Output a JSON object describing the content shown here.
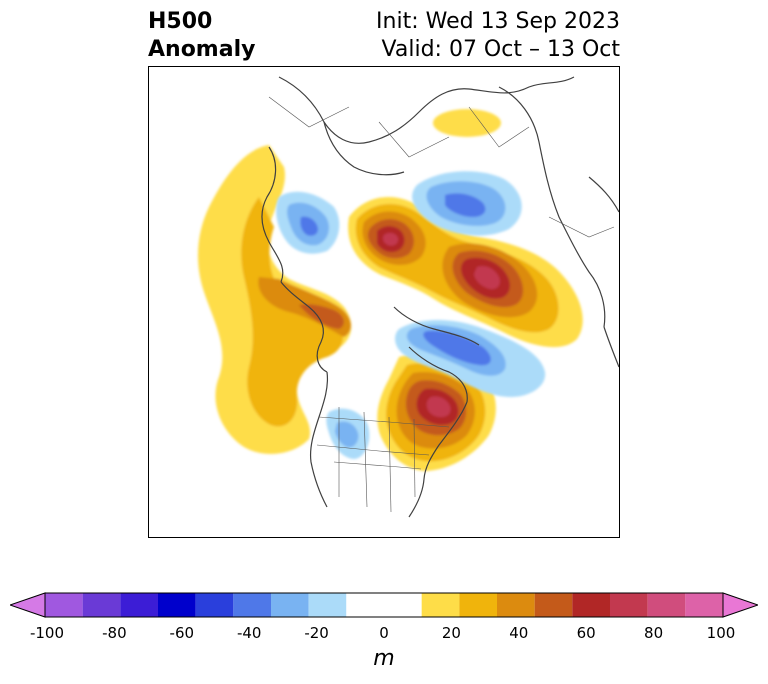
{
  "header": {
    "title_line1": "H500",
    "title_line2": "Anomaly",
    "init": "Init: Wed 13 Sep 2023",
    "valid": "Valid: 07 Oct – 13 Oct"
  },
  "map": {
    "projection": "polar stereographic (North America / Arctic)",
    "field": "500 hPa height anomaly",
    "anomaly_centers": [
      {
        "region": "Eastern North America / Great Lakes",
        "sign": "positive",
        "max_m": 70
      },
      {
        "region": "Greenland Sea / Norway",
        "sign": "positive",
        "max_m": 70
      },
      {
        "region": "Arctic north of Scandinavia",
        "sign": "positive",
        "max_m": 70
      },
      {
        "region": "Bering Sea / Alaska",
        "sign": "positive",
        "max_m": 50
      },
      {
        "region": "North Pacific",
        "sign": "positive",
        "max_m": 30
      },
      {
        "region": "Central Siberia",
        "sign": "positive",
        "max_m": 20
      },
      {
        "region": "Hudson Bay / Canadian Arctic",
        "sign": "negative",
        "max_m": -50
      },
      {
        "region": "Western Siberia",
        "sign": "negative",
        "max_m": -40
      },
      {
        "region": "Northeast Asia",
        "sign": "negative",
        "max_m": -40
      },
      {
        "region": "Western US",
        "sign": "negative",
        "max_m": -20
      }
    ]
  },
  "colorbar": {
    "unit": "m",
    "extend": "both",
    "levels": [
      -100,
      -90,
      -80,
      -70,
      -60,
      -50,
      -40,
      -30,
      -20,
      -10,
      10,
      20,
      30,
      40,
      50,
      60,
      70,
      80,
      90,
      100
    ],
    "colors": [
      "#d57ae6",
      "#a058e0",
      "#6a3ad6",
      "#3c1dd6",
      "#0000cc",
      "#2a3fdc",
      "#4f78e8",
      "#79b3f2",
      "#abdbf9",
      "#ffffff",
      "#fedd48",
      "#f0b40c",
      "#dc8b0f",
      "#c45a1a",
      "#b12726",
      "#c2394f",
      "#d04d7d",
      "#dd62a8",
      "#e977d5",
      "#e977d5"
    ],
    "over_color": "#e977d5",
    "under_color": "#d57ae6",
    "tick_labels": [
      "-100",
      "-80",
      "-60",
      "-40",
      "-20",
      "0",
      "20",
      "40",
      "60",
      "80",
      "100"
    ]
  }
}
